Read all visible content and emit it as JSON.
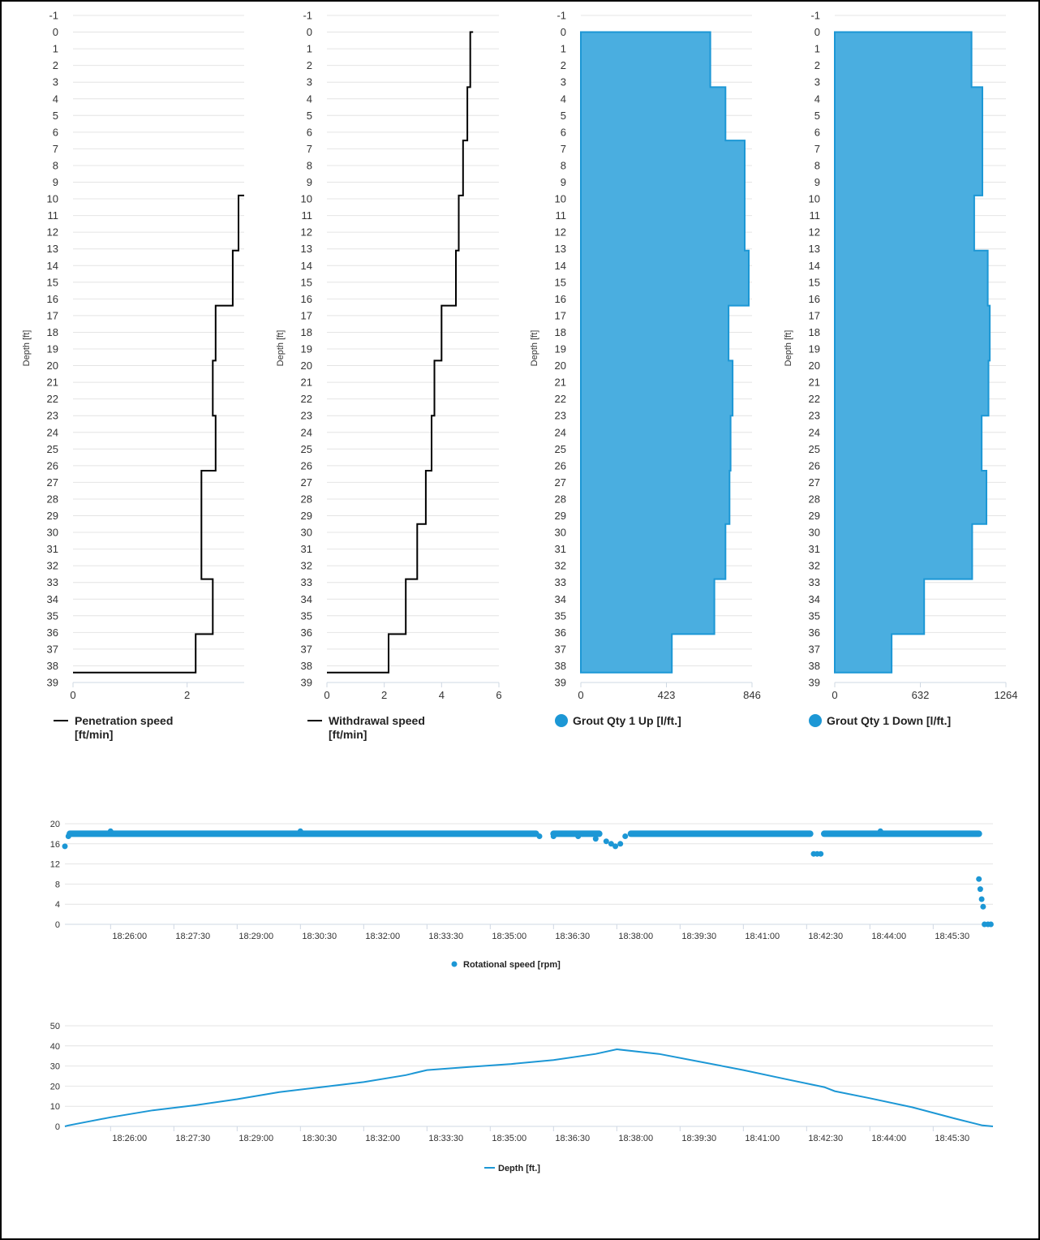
{
  "colors": {
    "blue": "#1c97d5",
    "area_fill": "#4aaee0",
    "black": "#000000",
    "grid": "#e4e4e4"
  },
  "chart_data": [
    {
      "type": "line",
      "legend": [
        "Penetration speed",
        "[ft/min]"
      ],
      "ylabel": "Depth [ft]",
      "y_reversed": true,
      "ylim": [
        -1,
        39
      ],
      "xlim": [
        0,
        3
      ],
      "x_ticks": [
        0,
        2
      ],
      "y_ticks": [
        -1,
        0,
        1,
        2,
        3,
        4,
        5,
        6,
        7,
        8,
        9,
        10,
        11,
        12,
        13,
        14,
        15,
        16,
        17,
        18,
        19,
        20,
        21,
        22,
        23,
        24,
        25,
        26,
        27,
        28,
        29,
        30,
        31,
        32,
        33,
        34,
        35,
        36,
        37,
        38,
        39
      ],
      "steps": [
        [
          38.4,
          0
        ],
        [
          38.4,
          2.15
        ],
        [
          36.1,
          2.15
        ],
        [
          36.1,
          2.45
        ],
        [
          32.8,
          2.45
        ],
        [
          32.8,
          2.25
        ],
        [
          26.3,
          2.25
        ],
        [
          26.3,
          2.5
        ],
        [
          23.0,
          2.5
        ],
        [
          23.0,
          2.45
        ],
        [
          19.7,
          2.45
        ],
        [
          19.7,
          2.5
        ],
        [
          16.4,
          2.5
        ],
        [
          16.4,
          2.8
        ],
        [
          13.1,
          2.8
        ],
        [
          13.1,
          2.9
        ],
        [
          9.8,
          2.9
        ],
        [
          9.8,
          3.0
        ]
      ],
      "mode": "line"
    },
    {
      "type": "line",
      "legend": [
        "Withdrawal speed",
        "[ft/min]"
      ],
      "ylabel": "Depth [ft]",
      "y_reversed": true,
      "ylim": [
        -1,
        39
      ],
      "xlim": [
        0,
        6
      ],
      "x_ticks": [
        0,
        2,
        4,
        6
      ],
      "y_ticks": [
        -1,
        0,
        1,
        2,
        3,
        4,
        5,
        6,
        7,
        8,
        9,
        10,
        11,
        12,
        13,
        14,
        15,
        16,
        17,
        18,
        19,
        20,
        21,
        22,
        23,
        24,
        25,
        26,
        27,
        28,
        29,
        30,
        31,
        32,
        33,
        34,
        35,
        36,
        37,
        38,
        39
      ],
      "steps": [
        [
          38.4,
          0
        ],
        [
          38.4,
          2.15
        ],
        [
          36.1,
          2.15
        ],
        [
          36.1,
          2.75
        ],
        [
          32.8,
          2.75
        ],
        [
          32.8,
          3.15
        ],
        [
          29.5,
          3.15
        ],
        [
          29.5,
          3.45
        ],
        [
          26.3,
          3.45
        ],
        [
          26.3,
          3.65
        ],
        [
          23.0,
          3.65
        ],
        [
          23.0,
          3.75
        ],
        [
          19.7,
          3.75
        ],
        [
          19.7,
          4.0
        ],
        [
          16.4,
          4.0
        ],
        [
          16.4,
          4.5
        ],
        [
          13.1,
          4.5
        ],
        [
          13.1,
          4.6
        ],
        [
          9.8,
          4.6
        ],
        [
          9.8,
          4.75
        ],
        [
          6.5,
          4.75
        ],
        [
          6.5,
          4.9
        ],
        [
          3.3,
          4.9
        ],
        [
          3.3,
          5.0
        ],
        [
          0.0,
          5.0
        ],
        [
          0.0,
          5.1
        ]
      ],
      "mode": "line"
    },
    {
      "type": "area",
      "legend": [
        "Grout Qty 1 Up [l/ft.]"
      ],
      "ylabel": "Depth [ft]",
      "y_reversed": true,
      "ylim": [
        -1,
        39
      ],
      "xlim": [
        0,
        846
      ],
      "x_ticks": [
        0,
        423,
        846
      ],
      "y_ticks": [
        -1,
        0,
        1,
        2,
        3,
        4,
        5,
        6,
        7,
        8,
        9,
        10,
        11,
        12,
        13,
        14,
        15,
        16,
        17,
        18,
        19,
        20,
        21,
        22,
        23,
        24,
        25,
        26,
        27,
        28,
        29,
        30,
        31,
        32,
        33,
        34,
        35,
        36,
        37,
        38,
        39
      ],
      "steps": [
        [
          0.0,
          630
        ],
        [
          0.0,
          640
        ],
        [
          3.3,
          640
        ],
        [
          3.3,
          715
        ],
        [
          6.5,
          715
        ],
        [
          6.5,
          810
        ],
        [
          13.1,
          810
        ],
        [
          13.1,
          830
        ],
        [
          16.4,
          830
        ],
        [
          16.4,
          730
        ],
        [
          19.7,
          730
        ],
        [
          19.7,
          750
        ],
        [
          23.0,
          750
        ],
        [
          23.0,
          740
        ],
        [
          26.3,
          740
        ],
        [
          26.3,
          735
        ],
        [
          29.5,
          735
        ],
        [
          29.5,
          715
        ],
        [
          32.8,
          715
        ],
        [
          32.8,
          660
        ],
        [
          36.1,
          660
        ],
        [
          36.1,
          450
        ],
        [
          38.4,
          450
        ]
      ],
      "mode": "area"
    },
    {
      "type": "area",
      "legend": [
        "Grout Qty 1 Down [l/ft.]"
      ],
      "ylabel": "Depth [ft]",
      "y_reversed": true,
      "ylim": [
        -1,
        39
      ],
      "xlim": [
        0,
        1264
      ],
      "x_ticks": [
        0,
        632,
        1264
      ],
      "y_ticks": [
        -1,
        0,
        1,
        2,
        3,
        4,
        5,
        6,
        7,
        8,
        9,
        10,
        11,
        12,
        13,
        14,
        15,
        16,
        17,
        18,
        19,
        20,
        21,
        22,
        23,
        24,
        25,
        26,
        27,
        28,
        29,
        30,
        31,
        32,
        33,
        34,
        35,
        36,
        37,
        38,
        39
      ],
      "steps": [
        [
          0.0,
          1010
        ],
        [
          3.3,
          1010
        ],
        [
          3.3,
          1090
        ],
        [
          9.8,
          1090
        ],
        [
          9.8,
          1030
        ],
        [
          13.1,
          1030
        ],
        [
          13.1,
          1130
        ],
        [
          16.4,
          1130
        ],
        [
          16.4,
          1145
        ],
        [
          19.7,
          1145
        ],
        [
          19.7,
          1135
        ],
        [
          23.0,
          1135
        ],
        [
          23.0,
          1085
        ],
        [
          26.3,
          1085
        ],
        [
          26.3,
          1120
        ],
        [
          29.5,
          1120
        ],
        [
          29.5,
          1015
        ],
        [
          32.8,
          1015
        ],
        [
          32.8,
          660
        ],
        [
          36.1,
          660
        ],
        [
          36.1,
          420
        ],
        [
          38.4,
          420
        ]
      ],
      "mode": "area"
    },
    {
      "type": "scatter",
      "legend": [
        "Rotational speed [rpm]"
      ],
      "ylim": [
        0,
        20
      ],
      "y_ticks": [
        0,
        4,
        8,
        12,
        16,
        20
      ],
      "x_ticks": [
        "18:26:00",
        "18:27:30",
        "18:29:00",
        "18:30:30",
        "18:32:00",
        "18:33:30",
        "18:35:00",
        "18:36:30",
        "18:38:00",
        "18:39:30",
        "18:41:00",
        "18:42:30",
        "18:44:00",
        "18:45:30"
      ],
      "time_range": [
        "18:24:55",
        "18:46:55"
      ],
      "points": [
        [
          "18:24:55",
          15.5
        ],
        [
          "18:25:00",
          17.5
        ],
        [
          "18:25:02",
          18.0
        ],
        [
          "18:26:00",
          18.5
        ],
        [
          "18:30:30",
          18.5
        ],
        [
          "18:36:10",
          17.5
        ],
        [
          "18:36:30",
          17.5
        ],
        [
          "18:36:45",
          18.0
        ],
        [
          "18:37:05",
          17.5
        ],
        [
          "18:37:30",
          17.0
        ],
        [
          "18:37:45",
          16.5
        ],
        [
          "18:37:52",
          16.0
        ],
        [
          "18:37:58",
          15.5
        ],
        [
          "18:38:05",
          16.0
        ],
        [
          "18:38:12",
          17.5
        ],
        [
          "18:38:20",
          18.0
        ],
        [
          "18:42:40",
          14.0
        ],
        [
          "18:42:45",
          14.0
        ],
        [
          "18:42:50",
          14.0
        ],
        [
          "18:44:15",
          18.5
        ],
        [
          "18:46:35",
          9.0
        ],
        [
          "18:46:37",
          7.0
        ],
        [
          "18:46:39",
          5.0
        ],
        [
          "18:46:41",
          3.5
        ],
        [
          "18:46:43",
          0.0
        ],
        [
          "18:46:48",
          0.0
        ],
        [
          "18:46:52",
          0.0
        ]
      ],
      "band": [
        [
          "18:25:02",
          "18:36:05",
          18.0
        ],
        [
          "18:36:30",
          "18:37:35",
          18.0
        ],
        [
          "18:38:20",
          "18:42:35",
          18.0
        ],
        [
          "18:42:55",
          "18:46:35",
          18.0
        ]
      ]
    },
    {
      "type": "line",
      "legend": [
        "Depth [ft.]"
      ],
      "ylim": [
        0,
        50
      ],
      "y_ticks": [
        0,
        10,
        20,
        30,
        40,
        50
      ],
      "x_ticks": [
        "18:26:00",
        "18:27:30",
        "18:29:00",
        "18:30:30",
        "18:32:00",
        "18:33:30",
        "18:35:00",
        "18:36:30",
        "18:38:00",
        "18:39:30",
        "18:41:00",
        "18:42:30",
        "18:44:00",
        "18:45:30"
      ],
      "time_range": [
        "18:24:55",
        "18:46:55"
      ],
      "points": [
        [
          "18:24:55",
          0.0
        ],
        [
          "18:25:00",
          0.5
        ],
        [
          "18:26:00",
          4.5
        ],
        [
          "18:27:00",
          8.0
        ],
        [
          "18:28:00",
          10.5
        ],
        [
          "18:29:00",
          13.5
        ],
        [
          "18:30:00",
          17.0
        ],
        [
          "18:31:00",
          19.5
        ],
        [
          "18:32:00",
          22.0
        ],
        [
          "18:33:00",
          25.5
        ],
        [
          "18:33:30",
          28.0
        ],
        [
          "18:34:30",
          29.5
        ],
        [
          "18:35:30",
          31.0
        ],
        [
          "18:36:30",
          33.0
        ],
        [
          "18:37:30",
          36.0
        ],
        [
          "18:38:00",
          38.3
        ],
        [
          "18:39:00",
          36.0
        ],
        [
          "18:40:00",
          32.0
        ],
        [
          "18:41:00",
          28.0
        ],
        [
          "18:42:00",
          23.5
        ],
        [
          "18:42:55",
          19.5
        ],
        [
          "18:43:10",
          17.5
        ],
        [
          "18:44:00",
          14.0
        ],
        [
          "18:45:00",
          9.5
        ],
        [
          "18:46:00",
          4.0
        ],
        [
          "18:46:40",
          0.5
        ],
        [
          "18:46:55",
          0.0
        ]
      ]
    }
  ]
}
